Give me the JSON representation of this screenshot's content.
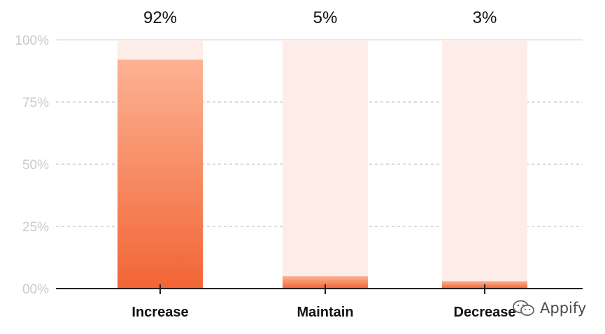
{
  "chart_data": {
    "type": "bar",
    "categories": [
      "Increase",
      "Maintain",
      "Decrease"
    ],
    "values": [
      92,
      5,
      3
    ],
    "value_labels": [
      "92%",
      "5%",
      "3%"
    ],
    "ylim": [
      0,
      100
    ],
    "yticks": [
      0,
      25,
      50,
      75,
      100
    ],
    "ytick_labels": [
      "00%",
      "25%",
      "50%",
      "75%",
      "100%"
    ],
    "title": "",
    "xlabel": "",
    "ylabel": "",
    "grid": "dashed horizontal",
    "colors": {
      "bar_top": "#fcb293",
      "bar_bottom": "#f26535",
      "track": "#fdede8",
      "axis": "#222222",
      "grid": "#cfcfcf",
      "tick_label": "#c9c9c9",
      "value_label": "#111111",
      "category_label": "#111111"
    }
  },
  "watermark": {
    "text": "Appify",
    "icon": "wechat-icon"
  }
}
